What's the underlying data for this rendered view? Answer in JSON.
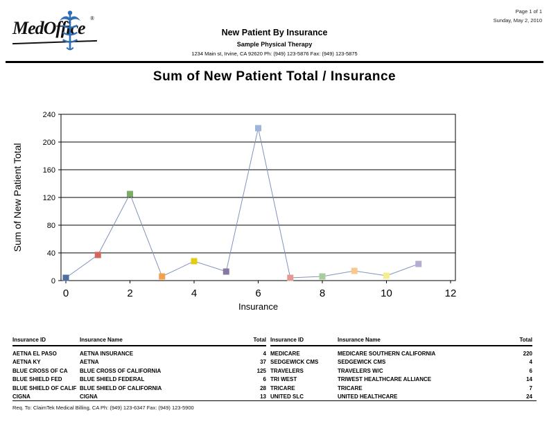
{
  "page_header": {
    "page_info": "Page 1 of 1",
    "date": "Sunday, May 2, 2010",
    "logo_text": "MedOffice",
    "logo_registered": "®",
    "report_title": "New Patient By Insurance",
    "practice_name": "Sample Physical Therapy",
    "practice_address": "1234 Main st, Irvine, CA 92620 Ph: (949) 123-5876 Fax: (949) 123-5875"
  },
  "chart": {
    "title": "Sum of New Patient Total / Insurance"
  },
  "chart_data": {
    "type": "line",
    "title": "Sum of New Patient Total / Insurance",
    "xlabel": "Insurance",
    "ylabel": "Sum of New Patient Total",
    "x": [
      0,
      1,
      2,
      3,
      4,
      5,
      6,
      7,
      8,
      9,
      10,
      11
    ],
    "values": [
      4,
      37,
      125,
      6,
      28,
      13,
      220,
      4,
      6,
      14,
      7,
      24
    ],
    "point_labels": [
      "AETNA EL PASO",
      "AETNA KY",
      "BLUE CROSS OF CA",
      "BLUE SHIELD FED",
      "BLUE SHIELD OF CALIF",
      "CIGNA",
      "MEDICARE",
      "SEDGEWICK CMS",
      "TRAVELERS",
      "TRI WEST",
      "TRICARE",
      "UNITED SLC"
    ],
    "xlim": [
      0,
      12
    ],
    "ylim": [
      0,
      240
    ],
    "x_ticks": [
      0,
      2,
      4,
      6,
      8,
      10,
      12
    ],
    "y_ticks": [
      0,
      40,
      80,
      120,
      160,
      200,
      240
    ],
    "grid": "horizontal",
    "legend": "none",
    "line_color": "#8093bb",
    "marker_colors": [
      "#4f6d9e",
      "#d4685c",
      "#7bad68",
      "#f4a04c",
      "#e3cc12",
      "#8678a2",
      "#9fb5da",
      "#e39a94",
      "#a9cc9c",
      "#f9c88f",
      "#f4ef8c",
      "#b6abd0"
    ]
  },
  "table": {
    "headers": [
      "Insurance ID",
      "Insurance Name",
      "Total"
    ],
    "left_rows": [
      [
        "AETNA EL PASO",
        "AETNA INSURANCE",
        "4"
      ],
      [
        "AETNA KY",
        "AETNA",
        "37"
      ],
      [
        "BLUE CROSS OF CA",
        "BLUE CROSS OF CALIFORNIA",
        "125"
      ],
      [
        "BLUE SHIELD FED",
        "BLUE SHIELD FEDERAL",
        "6"
      ],
      [
        "BLUE SHIELD OF CALIF",
        "BLUE SHIELD OF CALIFORNIA",
        "28"
      ],
      [
        "CIGNA",
        "CIGNA",
        "13"
      ]
    ],
    "right_rows": [
      [
        "MEDICARE",
        "MEDICARE SOUTHERN CALIFORNIA",
        "220"
      ],
      [
        "SEDGEWICK CMS",
        "SEDGEWICK CMS",
        "4"
      ],
      [
        "TRAVELERS",
        "TRAVELERS W/C",
        "6"
      ],
      [
        "TRI WEST",
        "TRIWEST HEALTHCARE ALLIANCE",
        "14"
      ],
      [
        "TRICARE",
        "TRICARE",
        "7"
      ],
      [
        "UNITED SLC",
        "UNITED HEALTHCARE",
        "24"
      ]
    ]
  },
  "footer": {
    "text": "Req. To: ClaimTek Medical Billing, CA Ph: (949) 123-6347 Fax: (949) 123-5900"
  }
}
